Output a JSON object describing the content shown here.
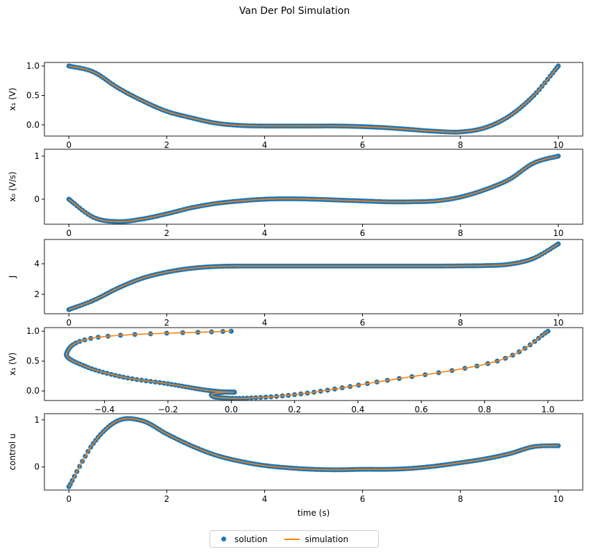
{
  "title": "Van Der Pol Simulation",
  "legend": {
    "solution": "solution",
    "simulation": "simulation"
  },
  "colors": {
    "solution": "#1f77b4",
    "simulation": "#ff7f0e"
  },
  "chart_data": [
    {
      "type": "line",
      "ylabel": "x₁ (V)",
      "xlabel": "",
      "xlim": [
        -0.5,
        10.5
      ],
      "ylim": [
        -0.19,
        1.06
      ],
      "xticks": [
        0,
        2,
        4,
        6,
        8,
        10
      ],
      "xticklabels": [
        "0",
        "2",
        "4",
        "6",
        "8",
        "10"
      ],
      "yticks": [
        0,
        0.5,
        1
      ],
      "yticklabels": [
        "0.0",
        "0.5",
        "1.0"
      ],
      "x": [
        0,
        0.5,
        1,
        1.5,
        2,
        2.5,
        3,
        3.5,
        4,
        4.5,
        5,
        5.5,
        6,
        6.5,
        7,
        7.5,
        8,
        8.5,
        9,
        9.5,
        10
      ],
      "series": [
        {
          "name": "solution",
          "values": [
            1.0,
            0.9,
            0.63,
            0.41,
            0.23,
            0.12,
            0.03,
            -0.01,
            -0.02,
            -0.02,
            -0.02,
            -0.02,
            -0.03,
            -0.05,
            -0.08,
            -0.11,
            -0.12,
            -0.05,
            0.15,
            0.5,
            1.0
          ]
        },
        {
          "name": "simulation",
          "values": [
            1.0,
            0.9,
            0.63,
            0.41,
            0.23,
            0.12,
            0.03,
            -0.01,
            -0.02,
            -0.02,
            -0.02,
            -0.02,
            -0.03,
            -0.05,
            -0.08,
            -0.11,
            -0.12,
            -0.05,
            0.15,
            0.5,
            1.0
          ]
        }
      ]
    },
    {
      "type": "line",
      "ylabel": "x₀ (V/s)",
      "xlabel": "",
      "xlim": [
        -0.5,
        10.5
      ],
      "ylim": [
        -0.58,
        1.16
      ],
      "xticks": [
        0,
        2,
        4,
        6,
        8,
        10
      ],
      "xticklabels": [
        "0",
        "2",
        "4",
        "6",
        "8",
        "10"
      ],
      "yticks": [
        0,
        1
      ],
      "yticklabels": [
        "0",
        "1"
      ],
      "x": [
        0,
        0.5,
        1,
        1.5,
        2,
        2.5,
        3,
        3.5,
        4,
        4.5,
        5,
        5.5,
        6,
        6.5,
        7,
        7.5,
        8,
        8.5,
        9,
        9.5,
        10
      ],
      "series": [
        {
          "name": "solution",
          "values": [
            0,
            -0.42,
            -0.52,
            -0.46,
            -0.34,
            -0.2,
            -0.1,
            -0.04,
            0,
            0.01,
            0,
            -0.02,
            -0.04,
            -0.06,
            -0.06,
            -0.04,
            0.05,
            0.22,
            0.46,
            0.84,
            1.0
          ]
        },
        {
          "name": "simulation",
          "values": [
            0,
            -0.42,
            -0.52,
            -0.46,
            -0.34,
            -0.2,
            -0.1,
            -0.04,
            0,
            0.01,
            0,
            -0.02,
            -0.04,
            -0.06,
            -0.06,
            -0.04,
            0.05,
            0.22,
            0.46,
            0.84,
            1.0
          ]
        }
      ]
    },
    {
      "type": "line",
      "ylabel": "J",
      "xlabel": "",
      "xlim": [
        -0.5,
        10.5
      ],
      "ylim": [
        0.73,
        5.59
      ],
      "xticks": [
        0,
        2,
        4,
        6,
        8,
        10
      ],
      "xticklabels": [
        "0",
        "2",
        "4",
        "6",
        "8",
        "10"
      ],
      "yticks": [
        2,
        4
      ],
      "yticklabels": [
        "2",
        "4"
      ],
      "x": [
        0,
        0.5,
        1,
        1.5,
        2,
        2.5,
        3,
        3.5,
        4,
        4.5,
        5,
        5.5,
        6,
        6.5,
        7,
        7.5,
        8,
        8.5,
        9,
        9.5,
        10
      ],
      "series": [
        {
          "name": "solution",
          "values": [
            1.0,
            1.6,
            2.4,
            3.05,
            3.45,
            3.7,
            3.82,
            3.85,
            3.85,
            3.85,
            3.85,
            3.85,
            3.85,
            3.85,
            3.85,
            3.85,
            3.86,
            3.88,
            3.97,
            4.36,
            5.3
          ]
        },
        {
          "name": "simulation",
          "values": [
            1.0,
            1.6,
            2.4,
            3.05,
            3.45,
            3.7,
            3.82,
            3.85,
            3.85,
            3.85,
            3.85,
            3.85,
            3.85,
            3.85,
            3.85,
            3.85,
            3.86,
            3.88,
            3.97,
            4.36,
            5.3
          ]
        }
      ]
    },
    {
      "type": "line",
      "ylabel": "x₁ (V)",
      "xlabel": "",
      "xlim": [
        -0.59,
        1.11
      ],
      "ylim": [
        -0.16,
        1.06
      ],
      "xticks": [
        -0.4,
        -0.2,
        0,
        0.2,
        0.4,
        0.6,
        0.8,
        1.0
      ],
      "xticklabels": [
        "−0.4",
        "−0.2",
        "0.0",
        "0.2",
        "0.4",
        "0.6",
        "0.8",
        "1.0"
      ],
      "yticks": [
        0,
        0.5,
        1
      ],
      "yticklabels": [
        "0.0",
        "0.5",
        "1.0"
      ],
      "x": [
        0,
        -0.42,
        -0.52,
        -0.46,
        -0.34,
        -0.2,
        -0.1,
        -0.04,
        0,
        0.01,
        0,
        -0.02,
        -0.04,
        -0.06,
        -0.06,
        -0.04,
        0.05,
        0.22,
        0.46,
        0.84,
        1.0
      ],
      "series": [
        {
          "name": "solution",
          "values": [
            1.0,
            0.9,
            0.63,
            0.41,
            0.23,
            0.12,
            0.03,
            -0.01,
            -0.02,
            -0.02,
            -0.02,
            -0.02,
            -0.03,
            -0.05,
            -0.08,
            -0.11,
            -0.12,
            -0.05,
            0.15,
            0.5,
            1.0
          ]
        },
        {
          "name": "simulation",
          "values": [
            1.0,
            0.9,
            0.63,
            0.41,
            0.23,
            0.12,
            0.03,
            -0.01,
            -0.02,
            -0.02,
            -0.02,
            -0.02,
            -0.03,
            -0.05,
            -0.08,
            -0.11,
            -0.12,
            -0.05,
            0.15,
            0.5,
            1.0
          ]
        }
      ]
    },
    {
      "type": "line",
      "ylabel": "control u",
      "xlabel": "time (s)",
      "xlim": [
        -0.5,
        10.5
      ],
      "ylim": [
        -0.49,
        1.13
      ],
      "xticks": [
        0,
        2,
        4,
        6,
        8,
        10
      ],
      "xticklabels": [
        "0",
        "2",
        "4",
        "6",
        "8",
        "10"
      ],
      "yticks": [
        0,
        1
      ],
      "yticklabels": [
        "0",
        "1"
      ],
      "x": [
        0,
        0.5,
        1,
        1.5,
        2,
        2.5,
        3,
        3.5,
        4,
        4.5,
        5,
        5.5,
        6,
        6.5,
        7,
        7.5,
        8,
        8.5,
        9,
        9.5,
        10
      ],
      "series": [
        {
          "name": "solution",
          "values": [
            -0.42,
            0.5,
            0.98,
            0.98,
            0.7,
            0.45,
            0.25,
            0.12,
            0.03,
            -0.02,
            -0.05,
            -0.06,
            -0.05,
            -0.05,
            -0.03,
            0.02,
            0.09,
            0.17,
            0.28,
            0.43,
            0.45
          ]
        },
        {
          "name": "simulation",
          "values": [
            -0.42,
            0.5,
            0.98,
            0.98,
            0.7,
            0.45,
            0.25,
            0.12,
            0.03,
            -0.02,
            -0.05,
            -0.06,
            -0.05,
            -0.05,
            -0.03,
            0.02,
            0.09,
            0.17,
            0.28,
            0.43,
            0.45
          ]
        }
      ]
    }
  ]
}
